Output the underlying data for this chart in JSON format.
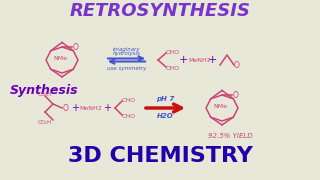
{
  "title": "RETROSYNTHESIS",
  "title_color": "#7733cc",
  "bg_color": "#e8e8d8",
  "synthesis_label": "Synthesis",
  "synthesis_color": "#6600bb",
  "chem_color": "#cc4477",
  "arrow_color_retro": "#4455cc",
  "arrow_color_synth": "#cc1111",
  "label_color": "#4455cc",
  "bottom_text": "3D CHEMISTRY",
  "bottom_color": "#2200aa",
  "annotation_retro1": "imaginary",
  "annotation_retro2": "hydrolysis",
  "annotation_retro3": "use symmetry",
  "annotation_synth1": "pH 7",
  "annotation_synth2": "H2O",
  "yield_text": "92.5% YIELD",
  "yield_color": "#cc4477",
  "plus_color": "#6600bb",
  "cho_color": "#cc4477",
  "menhi2_color": "#cc4477"
}
